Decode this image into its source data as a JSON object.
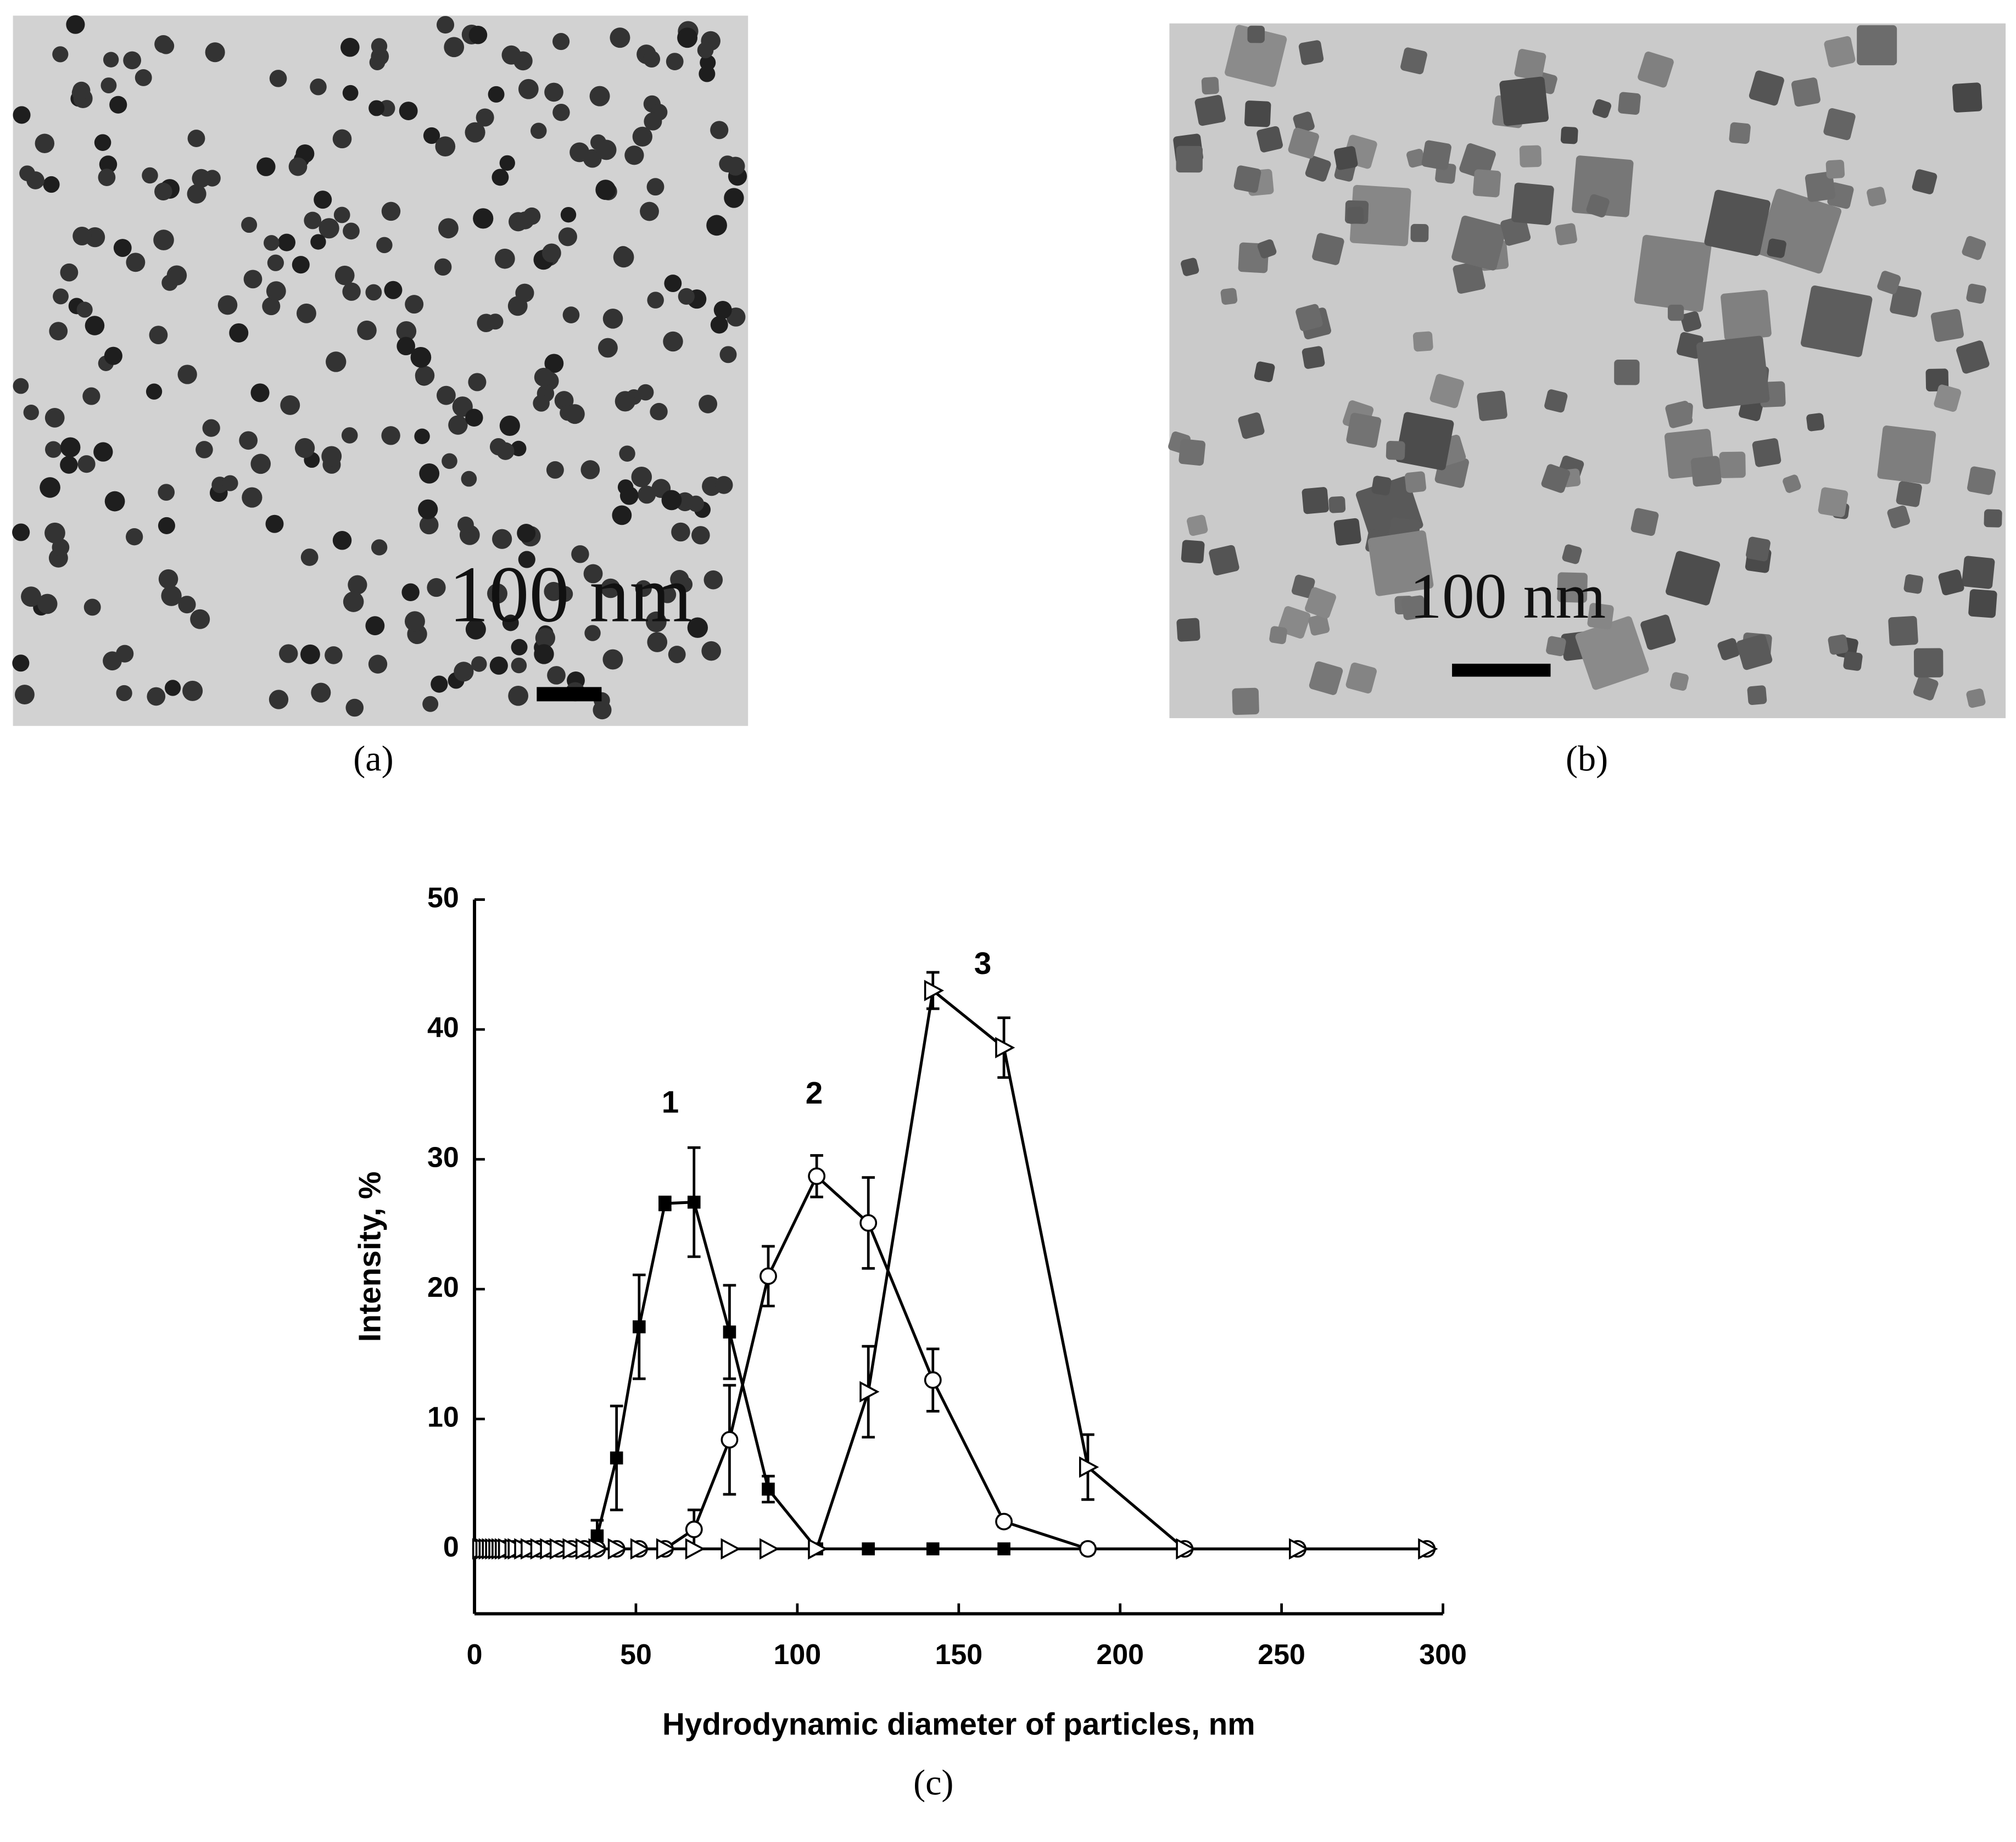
{
  "panels": {
    "a": {
      "scale_label": "100 nm",
      "caption": "(a)"
    },
    "b": {
      "scale_label": "100 nm",
      "caption": "(b)"
    },
    "c": {
      "caption": "(c)"
    }
  },
  "chart_data": {
    "type": "line",
    "xlabel": "Hydrodynamic diameter of particles, nm",
    "ylabel": "Intensity, %",
    "annotations": [
      "1",
      "2",
      "3"
    ],
    "x": [
      2,
      3,
      4,
      5,
      6,
      7,
      8,
      9,
      10,
      12,
      13,
      15,
      17,
      20,
      23,
      26,
      30,
      34,
      38,
      44,
      51,
      59,
      68,
      79,
      91,
      106,
      122,
      142,
      164,
      190,
      220,
      255,
      295
    ],
    "series": [
      {
        "name": "1",
        "color": "#000000",
        "marker": "square",
        "values": [
          0,
          0,
          0,
          0,
          0,
          0,
          0,
          0,
          0,
          0,
          0,
          0,
          0,
          0,
          0,
          0,
          0,
          0,
          1.0,
          7.0,
          17.1,
          26.6,
          26.7,
          16.7,
          4.6,
          0,
          0,
          0,
          0,
          0,
          0,
          0,
          0
        ],
        "errors": [
          null,
          null,
          null,
          null,
          null,
          null,
          null,
          null,
          null,
          null,
          null,
          null,
          null,
          null,
          null,
          null,
          null,
          null,
          1.2,
          4.0,
          4.0,
          0.5,
          4.2,
          3.6,
          1.0,
          null,
          null,
          null,
          null,
          null,
          null,
          null,
          null
        ]
      },
      {
        "name": "2",
        "color": "#000000",
        "marker": "circle",
        "values": [
          0,
          0,
          0,
          0,
          0,
          0,
          0,
          0,
          0,
          0,
          0,
          0,
          0,
          0,
          0,
          0,
          0,
          0,
          0,
          0,
          0,
          0,
          1.5,
          8.4,
          21.0,
          28.7,
          25.1,
          13.0,
          2.1,
          0,
          0,
          0,
          0
        ],
        "errors": [
          null,
          null,
          null,
          null,
          null,
          null,
          null,
          null,
          null,
          null,
          null,
          null,
          null,
          null,
          null,
          null,
          null,
          null,
          null,
          null,
          null,
          null,
          1.5,
          4.2,
          2.3,
          1.6,
          3.5,
          2.4,
          0.4,
          null,
          null,
          null,
          null
        ]
      },
      {
        "name": "3",
        "color": "#000000",
        "marker": "triangle-right",
        "values": [
          0,
          0,
          0,
          0,
          0,
          0,
          0,
          0,
          0,
          0,
          0,
          0,
          0,
          0,
          0,
          0,
          0,
          0,
          0,
          0,
          0,
          0,
          0,
          0,
          0,
          0,
          12.1,
          43.0,
          38.6,
          6.3,
          0,
          0,
          0
        ],
        "errors": [
          null,
          null,
          null,
          null,
          null,
          null,
          null,
          null,
          null,
          null,
          null,
          null,
          null,
          null,
          null,
          null,
          null,
          null,
          null,
          null,
          null,
          null,
          null,
          null,
          null,
          null,
          3.5,
          1.4,
          2.3,
          2.5,
          null,
          null,
          null
        ]
      }
    ],
    "xlim": [
      0,
      300
    ],
    "xticks": [
      0,
      50,
      100,
      150,
      200,
      250,
      300
    ],
    "ylim": [
      -5,
      50
    ],
    "yticks": [
      0,
      10,
      20,
      30,
      40,
      50
    ]
  }
}
